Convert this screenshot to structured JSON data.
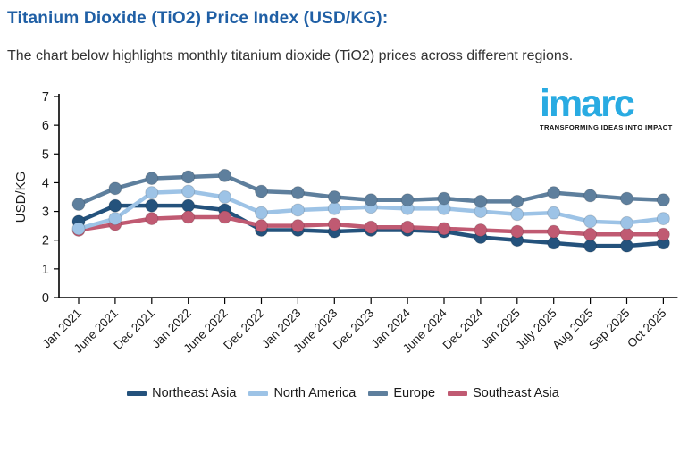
{
  "page": {
    "title": "Titanium Dioxide (TiO2) Price Index (USD/KG):",
    "subtitle": "The chart below highlights monthly titanium dioxide (TiO2) prices across different regions."
  },
  "branding": {
    "logo_text": "imarc",
    "tagline": "TRANSFORMING IDEAS INTO IMPACT",
    "logo_color": "#29ABE2",
    "tagline_color": "#111111"
  },
  "colors": {
    "title": "#1F5FA5",
    "subtitle_text": "#333333",
    "axis": "#000000"
  },
  "chart_data": {
    "type": "line",
    "title": "",
    "xlabel": "",
    "ylabel": "USD/KG",
    "ylim": [
      0,
      7
    ],
    "ytick_step": 1,
    "grid": false,
    "legend_position": "bottom",
    "marker": "circle",
    "categories": [
      "Jan 2021",
      "June 2021",
      "Dec 2021",
      "Jan 2022",
      "June 2022",
      "Dec 2022",
      "Jan 2023",
      "June 2023",
      "Dec 2023",
      "Jan 2024",
      "June 2024",
      "Dec 2024",
      "Jan 2025",
      "July 2025",
      "Aug 2025",
      "Sep 2025",
      "Oct 2025"
    ],
    "series": [
      {
        "name": "Northeast Asia",
        "slug": "northeast-asia",
        "color": "#24527C",
        "values": [
          2.65,
          3.2,
          3.2,
          3.2,
          3.05,
          2.35,
          2.35,
          2.3,
          2.35,
          2.35,
          2.3,
          2.1,
          2.0,
          1.9,
          1.8,
          1.8,
          1.9
        ]
      },
      {
        "name": "North America",
        "slug": "north-america",
        "color": "#9DC3E6",
        "values": [
          2.4,
          2.75,
          3.65,
          3.7,
          3.5,
          2.95,
          3.05,
          3.1,
          3.15,
          3.1,
          3.1,
          3.0,
          2.9,
          2.95,
          2.65,
          2.6,
          2.75
        ]
      },
      {
        "name": "Europe",
        "slug": "europe",
        "color": "#5E7F9D",
        "values": [
          3.25,
          3.8,
          4.15,
          4.2,
          4.25,
          3.7,
          3.65,
          3.5,
          3.4,
          3.4,
          3.45,
          3.35,
          3.35,
          3.65,
          3.55,
          3.45,
          3.4
        ]
      },
      {
        "name": "Southeast Asia",
        "slug": "southeast-asia",
        "color": "#C05A72",
        "values": [
          2.35,
          2.55,
          2.75,
          2.8,
          2.8,
          2.5,
          2.5,
          2.55,
          2.45,
          2.45,
          2.4,
          2.35,
          2.3,
          2.3,
          2.2,
          2.2,
          2.2
        ]
      }
    ]
  }
}
